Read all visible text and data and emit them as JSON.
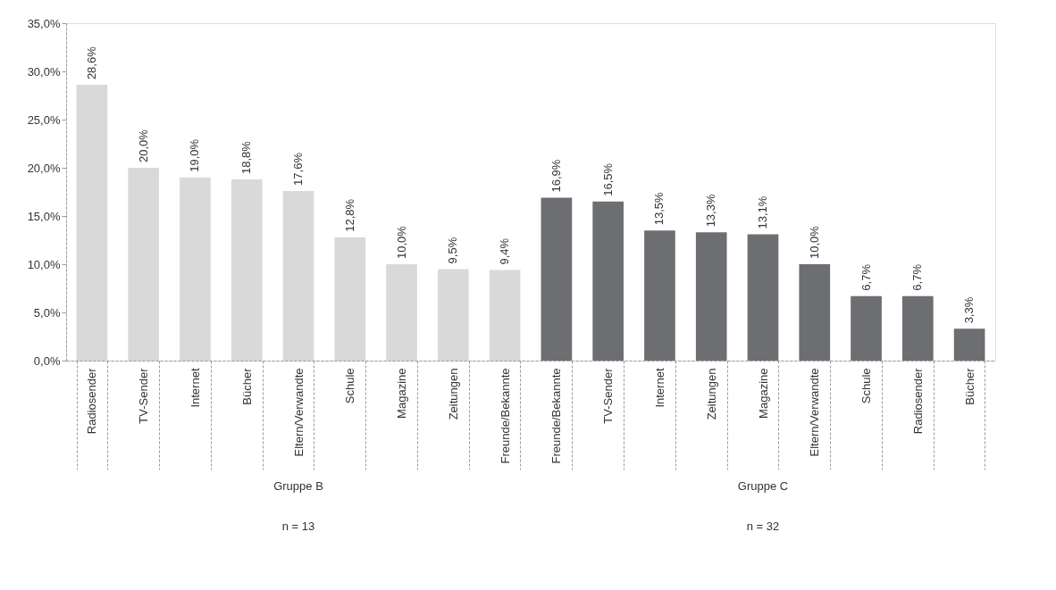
{
  "chart_data": {
    "type": "bar",
    "categories": [
      "Radiosender",
      "TV-Sender",
      "Internet",
      "Bücher",
      "Eltern/Verwandte",
      "Schule",
      "Magazine",
      "Zeitungen",
      "Freunde/Bekannte",
      "Freunde/Bekannte",
      "TV-Sender",
      "Internet",
      "Zeitungen",
      "Magazine",
      "Eltern/Verwandte",
      "Schule",
      "Radiosender",
      "Bücher"
    ],
    "values": [
      28.6,
      20.0,
      19.0,
      18.8,
      17.6,
      12.8,
      10.0,
      9.5,
      9.4,
      16.9,
      16.5,
      13.5,
      13.3,
      13.1,
      10.0,
      6.7,
      6.7,
      3.3
    ],
    "value_labels": [
      "28,6%",
      "20,0%",
      "19,0%",
      "18,8%",
      "17,6%",
      "12,8%",
      "10,0%",
      "9,5%",
      "9,4%",
      "16,9%",
      "16,5%",
      "13,5%",
      "13,3%",
      "13,1%",
      "10,0%",
      "6,7%",
      "6,7%",
      "3,3%"
    ],
    "colors": [
      "#d9d9d9",
      "#d9d9d9",
      "#d9d9d9",
      "#d9d9d9",
      "#d9d9d9",
      "#d9d9d9",
      "#d9d9d9",
      "#d9d9d9",
      "#d9d9d9",
      "#6d6e71",
      "#6d6e71",
      "#6d6e71",
      "#6d6e71",
      "#6d6e71",
      "#6d6e71",
      "#6d6e71",
      "#6d6e71",
      "#6d6e71"
    ],
    "ylim": [
      0,
      35
    ],
    "yticks": [
      {
        "value": 0,
        "label": "0,0%"
      },
      {
        "value": 5,
        "label": "5,0%"
      },
      {
        "value": 10,
        "label": "10,0%"
      },
      {
        "value": 15,
        "label": "15,0%"
      },
      {
        "value": 20,
        "label": "20,0%"
      },
      {
        "value": 25,
        "label": "25,0%"
      },
      {
        "value": 30,
        "label": "30,0%"
      },
      {
        "value": 35,
        "label": "35,0%"
      }
    ],
    "annotations": [
      "Gruppe B",
      "n = 13",
      "Gruppe C",
      "n = 32"
    ],
    "grid": false
  }
}
